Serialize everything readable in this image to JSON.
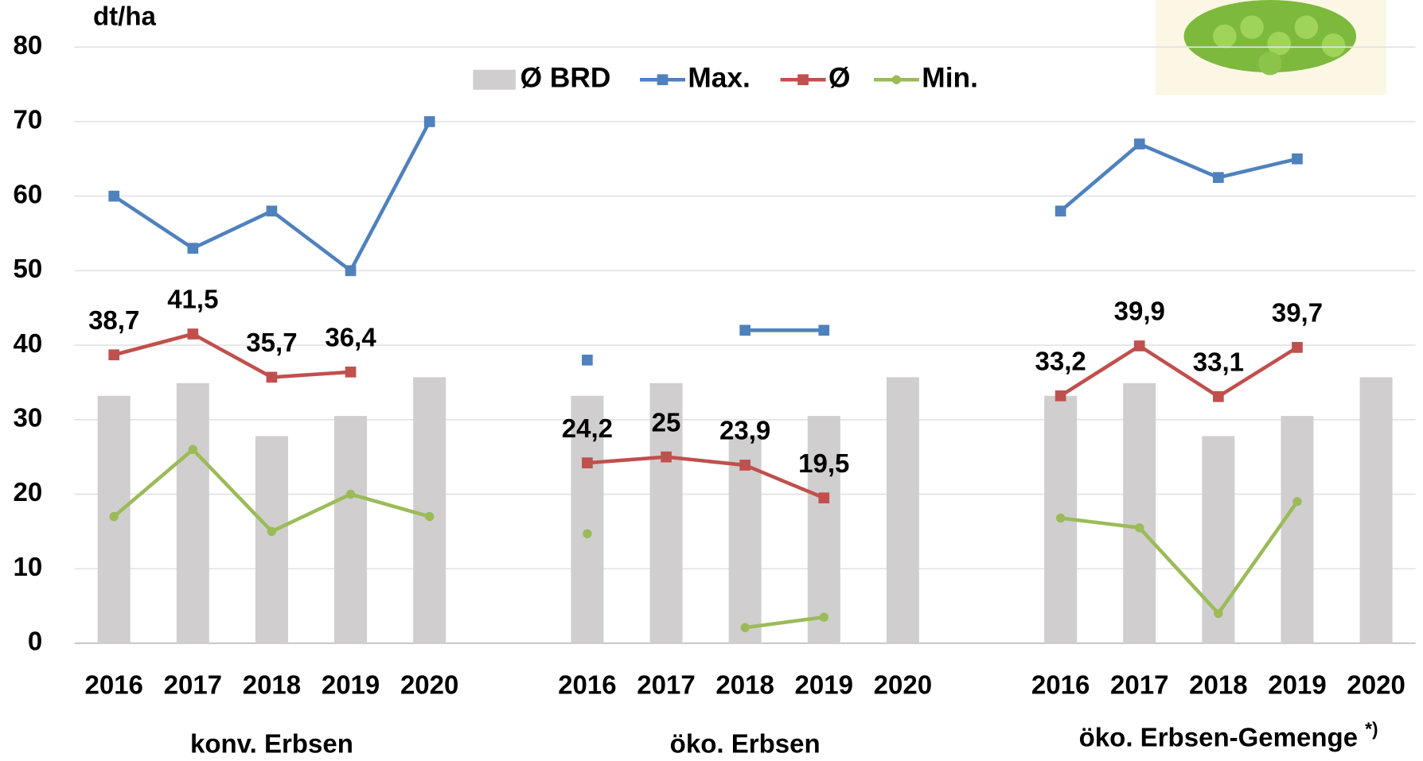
{
  "chart_data": {
    "type": "bar-line",
    "y_label": "dt/ha",
    "categories": [
      "2016",
      "2017",
      "2018",
      "2019",
      "2020",
      null,
      "2016",
      "2017",
      "2018",
      "2019",
      "2020",
      null,
      "2016",
      "2017",
      "2018",
      "2019",
      "2020"
    ],
    "group_labels": [
      "konv. Erbsen",
      "öko. Erbsen",
      "öko. Erbsen-Gemenge"
    ],
    "group_note": "*)",
    "ylim": [
      0,
      80
    ],
    "yticks": [
      0,
      10,
      20,
      30,
      40,
      50,
      60,
      70,
      80
    ],
    "grid": true,
    "series": [
      {
        "name": "Ø BRD",
        "kind": "bar",
        "color": "#d0cece",
        "values": [
          33.2,
          34.9,
          27.8,
          30.5,
          35.7,
          null,
          33.2,
          34.9,
          27.8,
          30.5,
          35.7,
          null,
          33.2,
          34.9,
          27.8,
          30.5,
          35.7
        ]
      },
      {
        "name": "Max.",
        "kind": "line",
        "marker": "square",
        "color": "#4f81bd",
        "values": [
          60,
          53,
          58,
          50,
          70,
          null,
          38,
          null,
          42,
          42,
          null,
          null,
          58,
          67,
          62.5,
          65,
          null
        ]
      },
      {
        "name": "Ø",
        "kind": "line",
        "marker": "square",
        "color": "#c0504d",
        "values": [
          38.7,
          41.5,
          35.7,
          36.4,
          null,
          null,
          24.2,
          25,
          23.9,
          19.5,
          null,
          null,
          33.2,
          39.9,
          33.1,
          39.7,
          null
        ],
        "value_labels": [
          "38,7",
          "41,5",
          "35,7",
          "36,4",
          null,
          null,
          "24,2",
          "25",
          "23,9",
          "19,5",
          null,
          null,
          "33,2",
          "39,9",
          "33,1",
          "39,7",
          null
        ]
      },
      {
        "name": "Min.",
        "kind": "line",
        "marker": "circle",
        "color": "#9bbb59",
        "values": [
          17,
          26,
          15,
          20,
          17,
          null,
          14.7,
          null,
          2.1,
          3.5,
          null,
          null,
          16.8,
          15.5,
          4,
          19,
          null
        ]
      }
    ]
  }
}
